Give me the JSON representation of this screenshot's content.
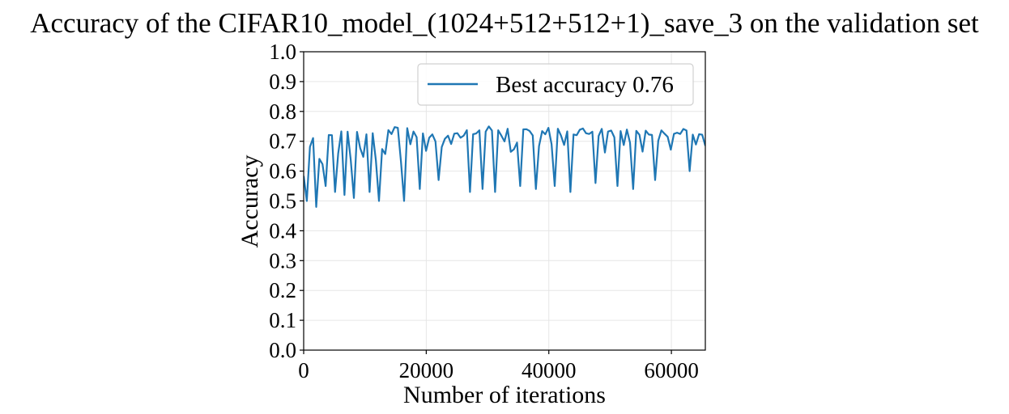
{
  "chart_data": {
    "type": "line",
    "title": "Accuracy of the CIFAR10_model_(1024+512+512+1)_save_3 on the validation set",
    "xlabel": "Number of iterations",
    "ylabel": "Accuracy",
    "xlim": [
      0,
      65536
    ],
    "ylim": [
      0.0,
      1.0
    ],
    "xticks": [
      0,
      20000,
      40000,
      60000
    ],
    "xtick_labels": [
      "0",
      "20000",
      "40000",
      "60000"
    ],
    "yticks": [
      0.0,
      0.1,
      0.2,
      0.3,
      0.4,
      0.5,
      0.6,
      0.7,
      0.8,
      0.9,
      1.0
    ],
    "ytick_labels": [
      "0.0",
      "0.1",
      "0.2",
      "0.3",
      "0.4",
      "0.5",
      "0.6",
      "0.7",
      "0.8",
      "0.9",
      "1.0"
    ],
    "grid": true,
    "legend_position": "top-right",
    "series": [
      {
        "name": "Best accuracy 0.76",
        "color": "#1f77b4",
        "x_step": 512,
        "x_start": 0,
        "upper_envelope": [
          [
            0,
            0.66
          ],
          [
            500,
            0.7
          ],
          [
            1000,
            0.73
          ],
          [
            3000,
            0.74
          ],
          [
            10000,
            0.745
          ],
          [
            18000,
            0.75
          ],
          [
            20000,
            0.735
          ],
          [
            25000,
            0.74
          ],
          [
            30000,
            0.75
          ],
          [
            35000,
            0.75
          ],
          [
            40000,
            0.745
          ],
          [
            50000,
            0.745
          ],
          [
            60000,
            0.745
          ],
          [
            65536,
            0.745
          ]
        ],
        "typical_lower": [
          [
            0,
            0.55
          ],
          [
            1000,
            0.58
          ],
          [
            5000,
            0.61
          ],
          [
            15000,
            0.63
          ],
          [
            20000,
            0.64
          ],
          [
            30000,
            0.65
          ],
          [
            40000,
            0.655
          ],
          [
            50000,
            0.66
          ],
          [
            60000,
            0.665
          ],
          [
            65536,
            0.67
          ]
        ],
        "notable_minima": [
          [
            500,
            0.5
          ],
          [
            1800,
            0.48
          ],
          [
            3500,
            0.55
          ],
          [
            5200,
            0.53
          ],
          [
            6500,
            0.52
          ],
          [
            8000,
            0.51
          ],
          [
            11000,
            0.53
          ],
          [
            12500,
            0.5
          ],
          [
            16500,
            0.5
          ],
          [
            19000,
            0.54
          ],
          [
            22000,
            0.57
          ],
          [
            27000,
            0.53
          ],
          [
            29000,
            0.54
          ],
          [
            31000,
            0.53
          ],
          [
            35500,
            0.55
          ],
          [
            38000,
            0.54
          ],
          [
            41000,
            0.55
          ],
          [
            43500,
            0.53
          ],
          [
            47500,
            0.56
          ],
          [
            51000,
            0.55
          ],
          [
            54000,
            0.54
          ],
          [
            57500,
            0.57
          ],
          [
            63000,
            0.6
          ]
        ]
      }
    ]
  }
}
